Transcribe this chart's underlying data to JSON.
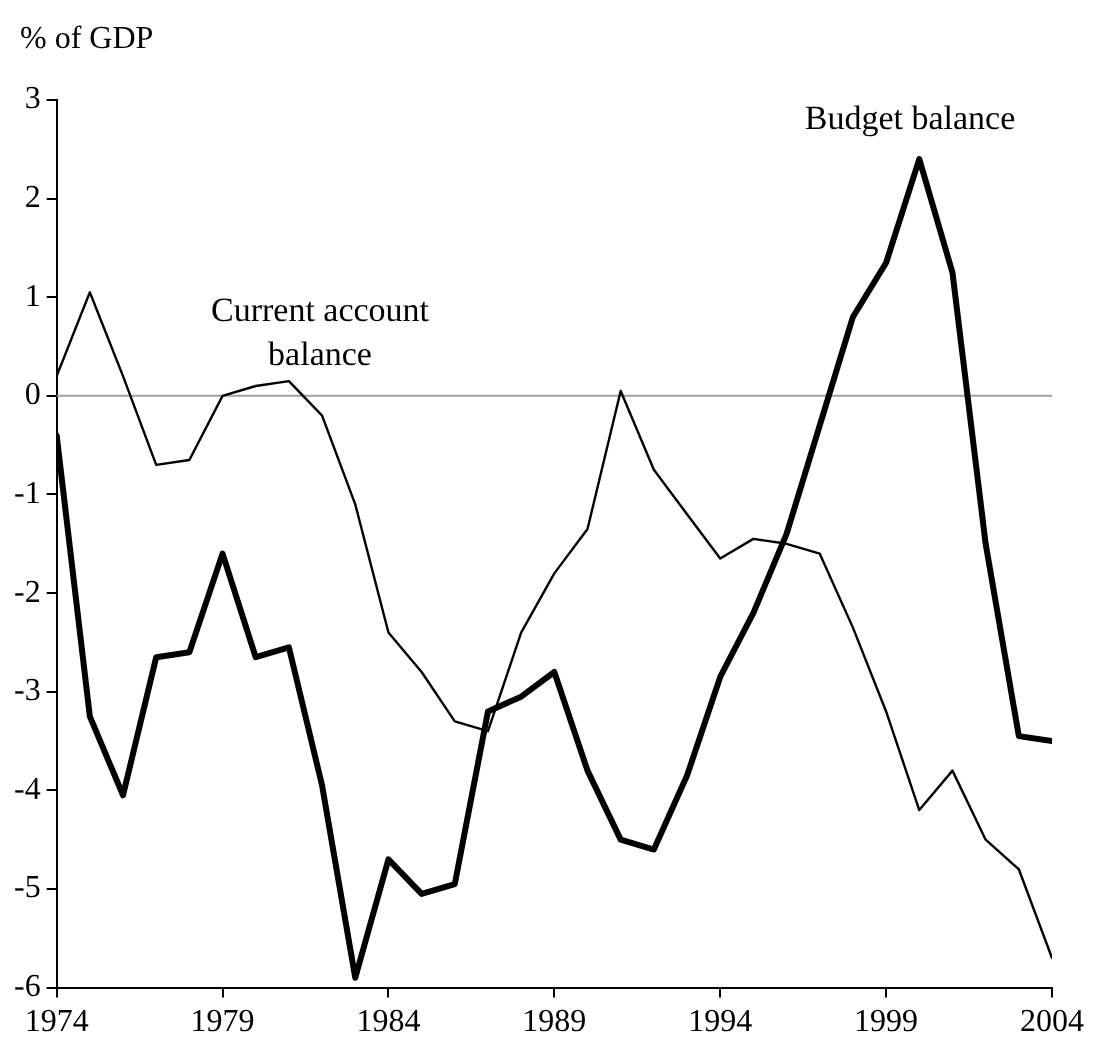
{
  "chart_data": {
    "type": "line",
    "ylabel": "% of GDP",
    "x": [
      1974,
      1975,
      1976,
      1977,
      1978,
      1979,
      1980,
      1981,
      1982,
      1983,
      1984,
      1985,
      1986,
      1987,
      1988,
      1989,
      1990,
      1991,
      1992,
      1993,
      1994,
      1995,
      1996,
      1997,
      1998,
      1999,
      2000,
      2001,
      2002,
      2003,
      2004
    ],
    "series": [
      {
        "color": "#000000",
        "values": [
          0.2,
          1.05,
          0.2,
          -0.7,
          -0.65,
          0.0,
          0.1,
          0.15,
          -0.2,
          -1.1,
          -2.4,
          -2.8,
          -3.3,
          -3.4,
          -2.4,
          -1.8,
          -1.35,
          0.05,
          -0.75,
          -1.2,
          -1.65,
          -1.45,
          -1.5,
          -1.6,
          -2.35,
          -3.2,
          -4.2,
          -3.8,
          -4.5,
          -4.8,
          -5.7
        ]
      },
      {
        "color": "#000000",
        "values": [
          -0.4,
          -3.25,
          -4.05,
          -2.65,
          -2.6,
          -1.6,
          -2.65,
          -2.55,
          -3.95,
          -5.9,
          -4.7,
          -5.05,
          -4.95,
          -3.2,
          -3.05,
          -2.8,
          -3.8,
          -4.5,
          -4.6,
          -3.85,
          -2.85,
          -2.2,
          -1.4,
          -0.3,
          0.8,
          1.35,
          2.4,
          1.25,
          -1.5,
          -3.45,
          -3.5
        ]
      }
    ],
    "xlim": [
      1974,
      2004
    ],
    "xticks": [
      1974,
      1979,
      1984,
      1989,
      1994,
      1999,
      2004
    ],
    "ylim": [
      -6,
      3
    ],
    "yticks": [
      -6,
      -5,
      -4,
      -3,
      -2,
      -1,
      0,
      1,
      2,
      3
    ],
    "ref_lines": [
      {
        "axis": "y",
        "value": 0,
        "color": "#a0a0a0"
      }
    ],
    "annotations": [
      "Current account balance",
      "Budget balance"
    ],
    "grid": false,
    "legend": false,
    "marker": "none",
    "line_style": "solid"
  }
}
